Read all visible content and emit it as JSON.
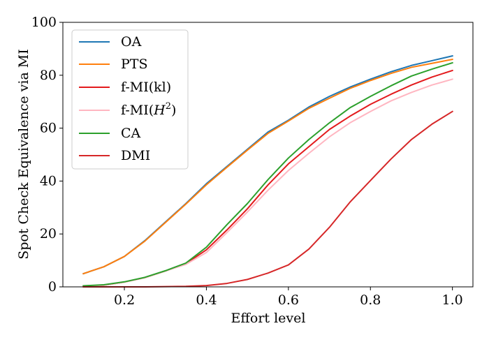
{
  "chart_data": {
    "type": "line",
    "title": "",
    "xlabel": "Effort level",
    "ylabel": "Spot Check Equivalence via MI",
    "xlim": [
      0.05,
      1.05
    ],
    "ylim": [
      0,
      100
    ],
    "xticks": [
      0.2,
      0.4,
      0.6,
      0.8,
      1.0
    ],
    "xtick_labels": [
      "0.2",
      "0.4",
      "0.6",
      "0.8",
      "1.0"
    ],
    "yticks": [
      0,
      20,
      40,
      60,
      80,
      100
    ],
    "ytick_labels": [
      "0",
      "20",
      "40",
      "60",
      "80",
      "100"
    ],
    "legend_position": "top-left",
    "x": [
      0.1,
      0.15,
      0.2,
      0.25,
      0.3,
      0.35,
      0.4,
      0.45,
      0.5,
      0.55,
      0.6,
      0.65,
      0.7,
      0.75,
      0.8,
      0.85,
      0.9,
      0.95,
      1.0
    ],
    "series": [
      {
        "name": "OA",
        "color": "#1f77b4",
        "values": [
          5.0,
          7.6,
          11.5,
          17.5,
          24.5,
          31.5,
          39.0,
          45.5,
          52.0,
          58.5,
          63.0,
          68.0,
          72.0,
          75.5,
          78.5,
          81.3,
          83.7,
          85.5,
          87.3
        ]
      },
      {
        "name": "PTS",
        "color": "#ff7f0e",
        "values": [
          5.0,
          7.6,
          11.5,
          17.3,
          24.3,
          31.3,
          38.6,
          45.2,
          51.7,
          58.0,
          62.7,
          67.5,
          71.3,
          75.0,
          78.0,
          80.7,
          83.0,
          84.5,
          86.0
        ]
      },
      {
        "name": "f-MI(kl)",
        "color": "#e31a1c",
        "values": [
          0.3,
          0.6,
          1.8,
          3.5,
          6.0,
          8.8,
          14.0,
          21.5,
          29.5,
          38.5,
          46.5,
          53.0,
          59.5,
          64.5,
          69.0,
          72.8,
          76.3,
          79.3,
          81.8
        ]
      },
      {
        "name": "f-MI(H^2)",
        "color": "#ffb6c1",
        "values": [
          0.3,
          0.6,
          1.8,
          3.5,
          6.0,
          8.5,
          13.0,
          20.5,
          28.3,
          36.5,
          44.0,
          50.5,
          56.7,
          62.0,
          66.3,
          70.3,
          73.5,
          76.3,
          78.5
        ]
      },
      {
        "name": "CA",
        "color": "#2ca02c",
        "values": [
          0.4,
          0.8,
          1.9,
          3.6,
          6.1,
          9.0,
          15.0,
          23.5,
          31.5,
          40.5,
          48.7,
          55.7,
          62.0,
          67.7,
          72.0,
          76.0,
          79.7,
          82.3,
          84.7
        ]
      },
      {
        "name": "DMI",
        "color": "#d62728",
        "values": [
          0.0,
          0.0,
          0.0,
          0.0,
          0.1,
          0.2,
          0.5,
          1.3,
          2.8,
          5.2,
          8.3,
          14.3,
          22.5,
          32.0,
          40.2,
          48.3,
          55.7,
          61.5,
          66.3
        ]
      }
    ]
  },
  "legend": {
    "labels": [
      "OA",
      "PTS",
      "f-MI(kl)",
      "f-MI(",
      "CA",
      "DMI"
    ],
    "h2_base": "H",
    "h2_exp": "2",
    "h2_close": ")"
  }
}
